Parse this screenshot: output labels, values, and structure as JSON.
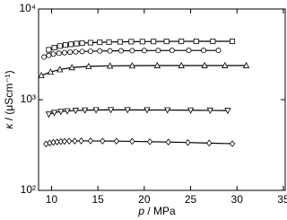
{
  "chart_data": {
    "type": "scatter",
    "xlabel": {
      "symbol": "p",
      "unit": "/ MPa"
    },
    "ylabel": {
      "symbol": "κ",
      "unit": "/ (μScm⁻¹)"
    },
    "xlim": [
      8.6,
      35.2
    ],
    "xticks": [
      10,
      15,
      20,
      25,
      30,
      35
    ],
    "ylim": [
      100,
      10000
    ],
    "log_y": true,
    "yticks": [
      {
        "value": 100,
        "label": "10²"
      },
      {
        "value": 1000,
        "label": "10³"
      },
      {
        "value": 10000,
        "label": "10⁴"
      }
    ],
    "series": [
      {
        "marker": "square",
        "color": "#000000",
        "x": [
          9.7,
          10.3,
          10.9,
          11.5,
          12.1,
          12.7,
          13.3,
          14.2,
          15.2,
          16.2,
          17.4,
          18.6,
          19.8,
          21.0,
          22.4,
          24.0,
          25.6,
          27.4,
          29.5
        ],
        "values": [
          3550,
          3750,
          3900,
          4000,
          4080,
          4150,
          4200,
          4250,
          4290,
          4320,
          4340,
          4360,
          4370,
          4380,
          4390,
          4395,
          4400,
          4400,
          4400
        ]
      },
      {
        "marker": "circle",
        "color": "#000000",
        "x": [
          9.2,
          9.7,
          10.2,
          10.8,
          11.4,
          12.0,
          12.6,
          13.3,
          14.2,
          15.2,
          16.3,
          17.5,
          18.7,
          20.0,
          21.5,
          23.0,
          24.8,
          26.4,
          28.0
        ],
        "values": [
          2950,
          3080,
          3180,
          3250,
          3300,
          3340,
          3370,
          3400,
          3420,
          3440,
          3450,
          3460,
          3470,
          3480,
          3480,
          3490,
          3490,
          3490,
          3490
        ]
      },
      {
        "marker": "triangle-up",
        "color": "#000000",
        "x": [
          8.9,
          9.9,
          10.9,
          12.2,
          14.0,
          16.3,
          18.7,
          21.4,
          24.0,
          26.5,
          28.7,
          31.0
        ],
        "values": [
          1850,
          2020,
          2150,
          2260,
          2330,
          2360,
          2370,
          2380,
          2380,
          2380,
          2380,
          2380
        ]
      },
      {
        "marker": "triangle-down",
        "color": "#000000",
        "x": [
          9.7,
          10.3,
          11.0,
          11.7,
          12.6,
          13.6,
          14.8,
          16.4,
          18.2,
          20.3,
          22.5,
          25.0,
          27.1,
          29.0
        ],
        "values": [
          690,
          720,
          740,
          750,
          760,
          765,
          770,
          772,
          772,
          770,
          768,
          765,
          762,
          758
        ]
      },
      {
        "marker": "diamond",
        "color": "#000000",
        "x": [
          9.4,
          9.8,
          10.2,
          10.6,
          11.0,
          11.4,
          11.9,
          12.5,
          13.2,
          14.2,
          15.5,
          17.0,
          18.7,
          20.6,
          22.6,
          24.7,
          27.0,
          29.5
        ],
        "values": [
          325,
          333,
          338,
          342,
          345,
          347,
          349,
          350,
          351,
          351,
          350,
          349,
          347,
          344,
          341,
          337,
          332,
          327
        ]
      }
    ]
  }
}
